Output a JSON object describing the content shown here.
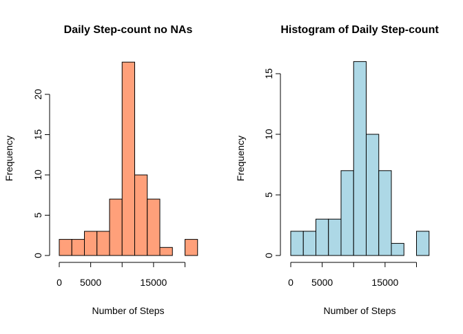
{
  "chart_data": [
    {
      "type": "bar",
      "title": "Daily Step-count no NAs",
      "xlabel": "Number of Steps",
      "ylabel": "Frequency",
      "bin_width": 2000,
      "bins": [
        [
          0,
          2000
        ],
        [
          2000,
          4000
        ],
        [
          4000,
          6000
        ],
        [
          6000,
          8000
        ],
        [
          8000,
          10000
        ],
        [
          10000,
          12000
        ],
        [
          12000,
          14000
        ],
        [
          14000,
          16000
        ],
        [
          16000,
          18000
        ],
        [
          18000,
          20000
        ],
        [
          20000,
          22000
        ]
      ],
      "values": [
        2,
        2,
        3,
        3,
        7,
        24,
        10,
        7,
        1,
        0,
        2
      ],
      "xticks": [
        0,
        5000,
        10000,
        15000,
        20000
      ],
      "xtick_labels": [
        "0",
        "5000",
        "",
        "15000",
        ""
      ],
      "yticks": [
        0,
        5,
        10,
        15,
        20
      ],
      "ytick_labels": [
        "0",
        "5",
        "10",
        "15",
        "20"
      ],
      "ylim": [
        0,
        24
      ],
      "bar_color": "#FFA07A",
      "grid": false
    },
    {
      "type": "bar",
      "title": "Histogram of Daily Step-count",
      "xlabel": "Number of Steps",
      "ylabel": "Frequency",
      "bin_width": 2000,
      "bins": [
        [
          0,
          2000
        ],
        [
          2000,
          4000
        ],
        [
          4000,
          6000
        ],
        [
          6000,
          8000
        ],
        [
          8000,
          10000
        ],
        [
          10000,
          12000
        ],
        [
          12000,
          14000
        ],
        [
          14000,
          16000
        ],
        [
          16000,
          18000
        ],
        [
          18000,
          20000
        ],
        [
          20000,
          22000
        ]
      ],
      "values": [
        2,
        2,
        3,
        3,
        7,
        16,
        10,
        7,
        1,
        0,
        2
      ],
      "xticks": [
        0,
        5000,
        10000,
        15000,
        20000
      ],
      "xtick_labels": [
        "0",
        "5000",
        "",
        "15000",
        ""
      ],
      "yticks": [
        0,
        5,
        10,
        15
      ],
      "ytick_labels": [
        "0",
        "5",
        "10",
        "15"
      ],
      "ylim": [
        0,
        16
      ],
      "bar_color": "#ADD8E6",
      "grid": false
    }
  ]
}
